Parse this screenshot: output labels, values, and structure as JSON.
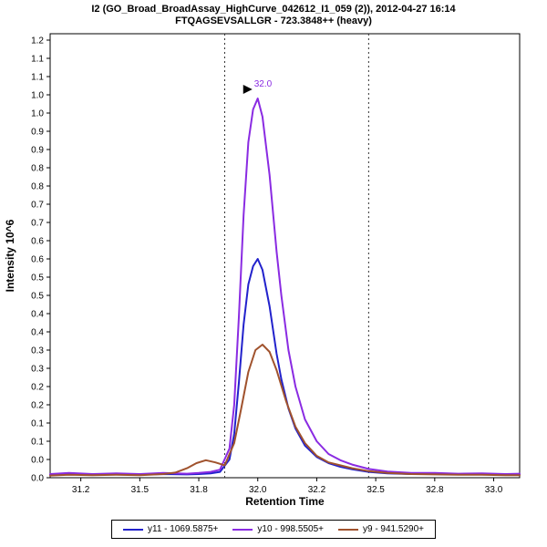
{
  "header": {
    "title_line1": "I2 (GO_Broad_BroadAssay_HighCurve_042612_I1_059 (2)), 2012-04-27 16:14",
    "title_line2": "FTQAGSEVSALLGR - 723.3848++ (heavy)"
  },
  "chart_data": {
    "type": "line",
    "title": "I2 (GO_Broad_BroadAssay_HighCurve_042612_I1_059 (2)), 2012-04-27 16:14",
    "subtitle": "FTQAGSEVSALLGR - 723.3848++ (heavy)",
    "xlabel": "Retention Time",
    "ylabel": "Intensity 10^6",
    "xlim": [
      31.12,
      33.11
    ],
    "ylim": [
      0,
      1.2
    ],
    "grid": false,
    "legend_position": "bottom",
    "x_ticks": [
      [
        31.25,
        "31.2"
      ],
      [
        31.5,
        "31.5"
      ],
      [
        31.75,
        "31.8"
      ],
      [
        32.0,
        "32.0"
      ],
      [
        32.25,
        "32.2"
      ],
      [
        32.5,
        "32.5"
      ],
      [
        32.75,
        "32.8"
      ],
      [
        33.0,
        "33.0"
      ]
    ],
    "y_ticks": [
      [
        1.2,
        "1.2"
      ],
      [
        1.15,
        "1.1"
      ],
      [
        1.1,
        "1.1"
      ],
      [
        1.05,
        "1.0"
      ],
      [
        1.0,
        "1.0"
      ],
      [
        0.95,
        "0.9"
      ],
      [
        0.9,
        "0.9"
      ],
      [
        0.85,
        "0.8"
      ],
      [
        0.8,
        "0.8"
      ],
      [
        0.75,
        "0.7"
      ],
      [
        0.7,
        "0.7"
      ],
      [
        0.65,
        "0.6"
      ],
      [
        0.6,
        "0.6"
      ],
      [
        0.55,
        "0.5"
      ],
      [
        0.5,
        "0.5"
      ],
      [
        0.45,
        "0.4"
      ],
      [
        0.4,
        "0.4"
      ],
      [
        0.35,
        "0.3"
      ],
      [
        0.3,
        "0.3"
      ],
      [
        0.25,
        "0.2"
      ],
      [
        0.2,
        "0.2"
      ],
      [
        0.15,
        "0.1"
      ],
      [
        0.1,
        "0.1"
      ],
      [
        0.05,
        "0.0"
      ],
      [
        0.0,
        "0.0"
      ]
    ],
    "peak_boundaries": [
      31.86,
      32.47
    ],
    "annotation": {
      "text": "32.0",
      "x": 32.0,
      "y": 1.04
    },
    "series": [
      {
        "id": "y11",
        "name": "y11 - 1069.5875+",
        "color": "#2222cc",
        "x": [
          31.12,
          31.2,
          31.3,
          31.4,
          31.5,
          31.6,
          31.7,
          31.75,
          31.8,
          31.84,
          31.88,
          31.9,
          31.92,
          31.94,
          31.96,
          31.98,
          32.0,
          32.02,
          32.05,
          32.08,
          32.1,
          32.13,
          32.16,
          32.2,
          32.25,
          32.3,
          32.35,
          32.4,
          32.47,
          32.55,
          32.65,
          32.75,
          32.85,
          32.95,
          33.05,
          33.11
        ],
        "y": [
          0.008,
          0.01,
          0.009,
          0.01,
          0.008,
          0.01,
          0.009,
          0.01,
          0.012,
          0.016,
          0.05,
          0.12,
          0.26,
          0.42,
          0.53,
          0.58,
          0.6,
          0.57,
          0.47,
          0.34,
          0.27,
          0.19,
          0.135,
          0.088,
          0.057,
          0.04,
          0.03,
          0.023,
          0.016,
          0.012,
          0.01,
          0.01,
          0.009,
          0.009,
          0.008,
          0.009
        ]
      },
      {
        "id": "y10",
        "name": "y10 - 998.5505+",
        "color": "#8a2be2",
        "x": [
          31.12,
          31.2,
          31.3,
          31.4,
          31.5,
          31.6,
          31.7,
          31.75,
          31.8,
          31.84,
          31.88,
          31.9,
          31.92,
          31.94,
          31.96,
          31.98,
          32.0,
          32.02,
          32.05,
          32.08,
          32.1,
          32.13,
          32.16,
          32.2,
          32.25,
          32.3,
          32.35,
          32.4,
          32.47,
          32.55,
          32.65,
          32.75,
          32.85,
          32.95,
          33.05,
          33.11
        ],
        "y": [
          0.01,
          0.013,
          0.01,
          0.012,
          0.01,
          0.013,
          0.011,
          0.013,
          0.016,
          0.022,
          0.08,
          0.2,
          0.44,
          0.72,
          0.92,
          1.01,
          1.04,
          0.99,
          0.83,
          0.62,
          0.5,
          0.35,
          0.25,
          0.16,
          0.1,
          0.065,
          0.048,
          0.036,
          0.024,
          0.017,
          0.013,
          0.013,
          0.011,
          0.012,
          0.01,
          0.011
        ]
      },
      {
        "id": "y9",
        "name": "y9 - 941.5290+",
        "color": "#a0522d",
        "x": [
          31.12,
          31.2,
          31.3,
          31.4,
          31.5,
          31.6,
          31.65,
          31.7,
          31.74,
          31.78,
          31.82,
          31.86,
          31.9,
          31.93,
          31.96,
          31.99,
          32.02,
          32.05,
          32.08,
          32.12,
          32.16,
          32.2,
          32.25,
          32.3,
          32.4,
          32.47,
          32.55,
          32.65,
          32.75,
          32.85,
          32.95,
          33.05,
          33.11
        ],
        "y": [
          0.006,
          0.008,
          0.007,
          0.008,
          0.007,
          0.01,
          0.014,
          0.026,
          0.04,
          0.048,
          0.042,
          0.034,
          0.095,
          0.19,
          0.29,
          0.35,
          0.365,
          0.345,
          0.295,
          0.21,
          0.14,
          0.095,
          0.06,
          0.042,
          0.026,
          0.018,
          0.013,
          0.01,
          0.009,
          0.008,
          0.008,
          0.007,
          0.007
        ]
      }
    ]
  }
}
